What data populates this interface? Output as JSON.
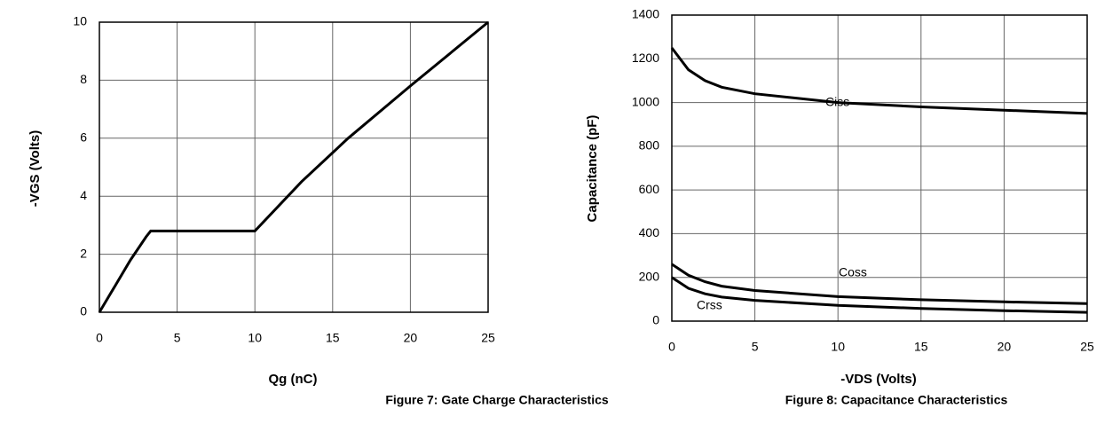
{
  "chart_data": [
    {
      "type": "line",
      "title": "Figure 7: Gate Charge Characteristics",
      "xlabel": "Qg (nC)",
      "ylabel": "-VGS (Volts)",
      "xlim": [
        0,
        25
      ],
      "xticks": [
        0,
        5,
        10,
        15,
        20,
        25
      ],
      "ylim": [
        0,
        10
      ],
      "yticks": [
        0,
        2,
        4,
        6,
        8,
        10
      ],
      "grid": true,
      "x": [
        0,
        1,
        2,
        3,
        3.3,
        10,
        13,
        16,
        20,
        25
      ],
      "series": [
        {
          "name": "-VGS",
          "color": "#000000",
          "values": [
            0,
            0.9,
            1.8,
            2.6,
            2.8,
            2.8,
            4.5,
            6,
            7.8,
            10
          ]
        }
      ]
    },
    {
      "type": "line",
      "title": "Figure 8: Capacitance Characteristics",
      "xlabel": "-VDS (Volts)",
      "ylabel": "Capacitance (pF)",
      "xlim": [
        0,
        25
      ],
      "xticks": [
        0,
        5,
        10,
        15,
        20,
        25
      ],
      "ylim": [
        0,
        1400
      ],
      "yticks": [
        0,
        200,
        400,
        600,
        800,
        1000,
        1200,
        1400
      ],
      "grid": true,
      "x": [
        0,
        1,
        2,
        3,
        5,
        10,
        15,
        20,
        25
      ],
      "series": [
        {
          "name": "Ciss",
          "color": "#000000",
          "values": [
            1250,
            1150,
            1100,
            1070,
            1040,
            1000,
            980,
            965,
            950
          ]
        },
        {
          "name": "Coss",
          "color": "#000000",
          "values": [
            260,
            210,
            180,
            160,
            140,
            112,
            98,
            88,
            80
          ]
        },
        {
          "name": "Crss",
          "color": "#000000",
          "values": [
            200,
            150,
            125,
            110,
            95,
            72,
            58,
            48,
            40
          ]
        }
      ]
    }
  ]
}
